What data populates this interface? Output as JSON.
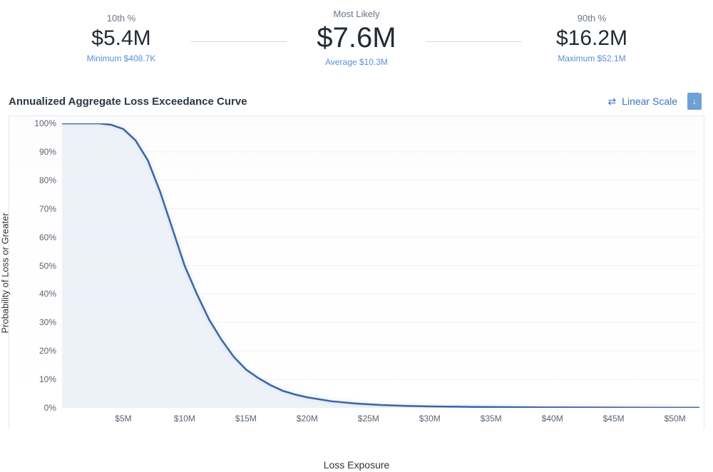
{
  "stats": {
    "p10": {
      "label": "10th %",
      "value": "$5.4M",
      "sub": "Minimum $408.7K"
    },
    "mode": {
      "label": "Most Likely",
      "value": "$7.6M",
      "sub": "Average $10.3M"
    },
    "p90": {
      "label": "90th %",
      "value": "$16.2M",
      "sub": "Maximum $52.1M"
    }
  },
  "chart": {
    "title": "Annualized Aggregate Loss Exceedance Curve",
    "scale_toggle_label": "Linear Scale",
    "y_label": "Probability of Loss or Greater",
    "x_label": "Loss Exposure",
    "type": "line-area",
    "xlim": [
      0,
      52
    ],
    "ylim": [
      0,
      100
    ],
    "y_ticks": [
      0,
      10,
      20,
      30,
      40,
      50,
      60,
      70,
      80,
      90,
      100
    ],
    "y_tick_labels": [
      "0%",
      "10%",
      "20%",
      "30%",
      "40%",
      "50%",
      "60%",
      "70%",
      "80%",
      "90%",
      "100%"
    ],
    "x_ticks": [
      5,
      10,
      15,
      20,
      25,
      30,
      35,
      40,
      45,
      50
    ],
    "x_tick_labels": [
      "$5M",
      "$10M",
      "$15M",
      "$20M",
      "$25M",
      "$30M",
      "$35M",
      "$40M",
      "$45M",
      "$50M"
    ],
    "curve": {
      "x": [
        0,
        1,
        2,
        3,
        4,
        5,
        6,
        7,
        8,
        9,
        10,
        11,
        12,
        13,
        14,
        15,
        16,
        17,
        18,
        19,
        20,
        22,
        24,
        26,
        28,
        30,
        32,
        34,
        36,
        40,
        45,
        50,
        52
      ],
      "y": [
        100,
        100,
        100,
        100,
        99.5,
        98,
        94,
        87,
        76,
        63,
        50,
        40,
        31,
        24,
        18,
        13.5,
        10.5,
        8,
        6,
        4.7,
        3.7,
        2.3,
        1.5,
        1.0,
        0.7,
        0.5,
        0.4,
        0.3,
        0.25,
        0.15,
        0.08,
        0.04,
        0.03
      ]
    },
    "colors": {
      "line": "#3a66a7",
      "fill": "#eaf0f8",
      "grid": "#eef1f4",
      "background": "#ffffff",
      "axis_text": "#5a6470",
      "accent": "#3973b8"
    },
    "line_width": 2.5,
    "title_fontsize": 15,
    "label_fontsize": 13,
    "tick_fontsize": 12
  }
}
